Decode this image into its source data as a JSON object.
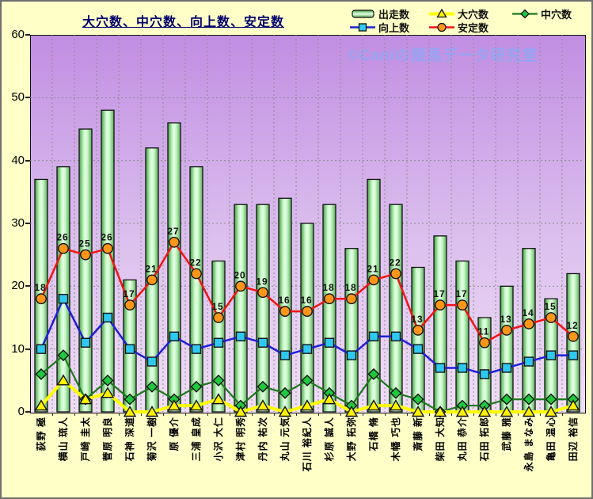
{
  "title": "大穴数、中穴数、向上数、安定数",
  "watermark": "©Caniの競馬データ研究室",
  "legend": [
    {
      "id": "starts",
      "label": "出走数",
      "swatch": "bar"
    },
    {
      "id": "big-upsets",
      "label": "大穴数",
      "swatch": "triangle"
    },
    {
      "id": "mid-upsets",
      "label": "中穴数",
      "swatch": "diamond"
    },
    {
      "id": "improvement",
      "label": "向上数",
      "swatch": "square"
    },
    {
      "id": "stability",
      "label": "安定数",
      "swatch": "circle"
    }
  ],
  "colors": {
    "background": "#ffffc8",
    "plot_top": "#c18ee2",
    "plot_bottom": "#f0def6",
    "grid": "#8c8c8c",
    "title_text": "#00006e",
    "watermark_text": "#96a4f2",
    "bar_edge": "#3e9e3e",
    "bar_center": "#e4ffe4",
    "line_stability": "#f01414",
    "marker_stability": "#ff9519",
    "line_improvement": "#1f1fd6",
    "marker_improvement": "#2fc8f0",
    "line_mid": "#1b7a1b",
    "marker_mid": "#1fc93f",
    "line_big": "#ffff00",
    "marker_big": "#fff200"
  },
  "chart_data": {
    "type": "bar+line",
    "title": "大穴数、中穴数、向上数、安定数",
    "ylim": [
      0,
      60
    ],
    "yticks": [
      0,
      10,
      20,
      30,
      40,
      50,
      60
    ],
    "grid": true,
    "legend_position": "top",
    "categories": [
      "荻野 極",
      "横山 琉人",
      "戸崎 圭太",
      "菅原 明良",
      "石神 深道",
      "菊沢 一樹",
      "原 優介",
      "三浦 皇成",
      "小沢 大仁",
      "津村 明秀",
      "丹内 祐次",
      "丸山 元気",
      "石川 裕紀人",
      "杉原 誠人",
      "大野 拓弥",
      "石橋 脩",
      "木幡 巧也",
      "斎藤 新",
      "柴田 大知",
      "丸田 恭介",
      "石田 拓郎",
      "武藤 雅",
      "永島 まなみ",
      "亀田 温心",
      "田辺 裕信"
    ],
    "series": [
      {
        "name": "出走数",
        "id": "starts",
        "kind": "bar",
        "values": [
          37,
          39,
          45,
          48,
          21,
          42,
          46,
          39,
          24,
          33,
          33,
          34,
          30,
          33,
          26,
          37,
          33,
          23,
          28,
          24,
          15,
          20,
          26,
          18,
          22
        ]
      },
      {
        "name": "安定数",
        "id": "stability",
        "kind": "line",
        "marker": "circle",
        "data_labels": true,
        "values": [
          18,
          26,
          25,
          26,
          17,
          21,
          27,
          22,
          15,
          20,
          19,
          16,
          16,
          18,
          18,
          21,
          22,
          13,
          17,
          17,
          11,
          13,
          14,
          15,
          12
        ]
      },
      {
        "name": "向上数",
        "id": "improvement",
        "kind": "line",
        "marker": "square",
        "values": [
          10,
          18,
          11,
          15,
          10,
          8,
          12,
          10,
          11,
          12,
          11,
          9,
          10,
          11,
          9,
          12,
          12,
          10,
          7,
          7,
          6,
          7,
          8,
          9,
          9
        ]
      },
      {
        "name": "中穴数",
        "id": "mid-upsets",
        "kind": "line",
        "marker": "diamond",
        "values": [
          6,
          9,
          2,
          5,
          2,
          4,
          2,
          4,
          5,
          1,
          4,
          3,
          5,
          3,
          1,
          6,
          3,
          2,
          0,
          1,
          1,
          2,
          2,
          2,
          2
        ]
      },
      {
        "name": "大穴数",
        "id": "big-upsets",
        "kind": "line",
        "marker": "triangle",
        "values": [
          1,
          5,
          2,
          3,
          0,
          0,
          1,
          1,
          2,
          0,
          1,
          0,
          1,
          2,
          0,
          1,
          1,
          0,
          0,
          0,
          0,
          0,
          0,
          0,
          1
        ]
      }
    ]
  }
}
